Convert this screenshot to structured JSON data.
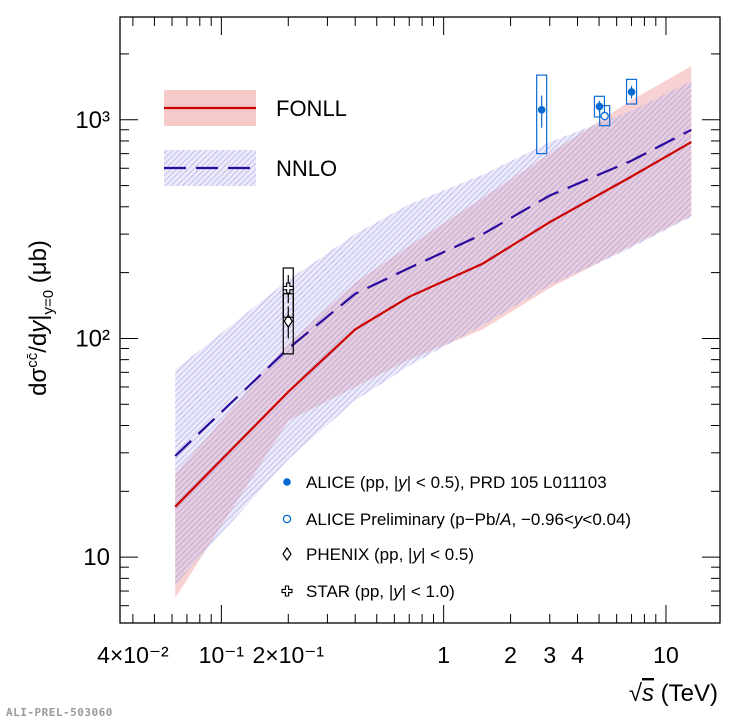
{
  "chart_data": {
    "type": "line",
    "xscale": "log",
    "yscale": "log",
    "xlim": [
      0.035,
      17.5
    ],
    "ylim": [
      5.0,
      2950
    ],
    "ylabel_main": "dσ",
    "ylabel_super": "cc̄",
    "ylabel_mid": "/d",
    "ylabel_y": "y",
    "ylabel_bar": "|",
    "ylabel_sub": "y=0",
    "ylabel_unit": " (μb)",
    "xlabel_sqrt": "√",
    "xlabel_s": "s",
    "xlabel_unit": " (TeV)",
    "x_ticks": [
      {
        "label": "4×10⁻²",
        "value": 0.04
      },
      {
        "label": "10⁻¹",
        "value": 0.1
      },
      {
        "label": "2×10⁻¹",
        "value": 0.2
      },
      {
        "label": "1",
        "value": 1
      },
      {
        "label": "2",
        "value": 2
      },
      {
        "label": "3",
        "value": 3
      },
      {
        "label": "4",
        "value": 4
      },
      {
        "label": "10",
        "value": 10
      }
    ],
    "y_ticks": [
      {
        "label": "10",
        "value": 10
      },
      {
        "label": "10²",
        "value": 100
      },
      {
        "label": "10³",
        "value": 1000
      }
    ],
    "series": [
      {
        "name": "FONLL",
        "style": "solid",
        "color": "#cc0000",
        "band_color": "#f7caca",
        "x": [
          0.062,
          0.2,
          0.4,
          0.7,
          1.5,
          3,
          7,
          13
        ],
        "central": [
          17,
          57,
          110,
          155,
          220,
          340,
          550,
          790
        ],
        "lower": [
          6.5,
          42,
          60,
          80,
          110,
          170,
          265,
          365
        ],
        "upper": [
          24,
          95,
          180,
          265,
          440,
          700,
          1230,
          1760
        ]
      },
      {
        "name": "NNLO",
        "style": "dashed",
        "color": "#2a0a9e",
        "band_color": "#9a94e0",
        "x": [
          0.062,
          0.2,
          0.4,
          0.7,
          1.5,
          3,
          7,
          13
        ],
        "central": [
          29,
          90,
          160,
          210,
          300,
          450,
          650,
          900
        ],
        "lower": [
          7.5,
          28,
          52,
          75,
          115,
          175,
          260,
          360
        ],
        "upper": [
          72,
          185,
          300,
          410,
          560,
          790,
          1100,
          1500
        ]
      }
    ],
    "points": [
      {
        "set": "ALICE",
        "x": 2.76,
        "y": 1110,
        "sys_low": 700,
        "sys_high": 1600,
        "err_low": 920,
        "err_high": 1290
      },
      {
        "set": "ALICE",
        "x": 5.02,
        "y": 1150,
        "sys_low": 1030,
        "sys_high": 1280,
        "err_low": 1080,
        "err_high": 1220
      },
      {
        "set": "ALICE",
        "x": 7.0,
        "y": 1340,
        "sys_low": 1180,
        "sys_high": 1530,
        "err_low": 1250,
        "err_high": 1430
      },
      {
        "set": "ALICE Preliminary",
        "x": 5.3,
        "y": 1040,
        "sys_low": 940,
        "sys_high": 1160,
        "err_low": 990,
        "err_high": 1090
      },
      {
        "set": "PHENIX",
        "x": 0.2,
        "y": 120,
        "sys_low": 85,
        "sys_high": 160,
        "err_low": 100,
        "err_high": 140
      },
      {
        "set": "STAR",
        "x": 0.2,
        "y": 170,
        "sys_low": 125,
        "sys_high": 210,
        "err_low": 145,
        "err_high": 195
      }
    ],
    "legend": [
      {
        "label": "FONLL",
        "kind": "band-solid"
      },
      {
        "label": "NNLO",
        "kind": "band-dashed"
      },
      {
        "label": "ALICE (pp, |y| < 0.5), PRD 105 L011103",
        "kind": "filled-circle",
        "label_pre": "ALICE (pp, |",
        "label_it": "y",
        "label_post": "| < 0.5), PRD 105 L011103"
      },
      {
        "label": "ALICE Preliminary (p−Pb/A, −0.96<y<0.04)",
        "kind": "open-circle",
        "label_pre": "ALICE Preliminary (p−Pb/",
        "label_it": "A",
        "label_mid": ", −0.96<",
        "label_it2": "y",
        "label_post": "<0.04)"
      },
      {
        "label": "PHENIX (pp, |y| < 0.5)",
        "kind": "diamond",
        "label_pre": "PHENIX (pp, |",
        "label_it": "y",
        "label_post": "| < 0.5)"
      },
      {
        "label": "STAR (pp, |y| < 1.0)",
        "kind": "cross",
        "label_pre": "STAR (pp, |",
        "label_it": "y",
        "label_post": "| < 1.0)"
      }
    ]
  },
  "footer": {
    "tag": "ALI-PREL-503060"
  },
  "colors": {
    "alice": "#0a6ad4",
    "frame": "#000000"
  }
}
